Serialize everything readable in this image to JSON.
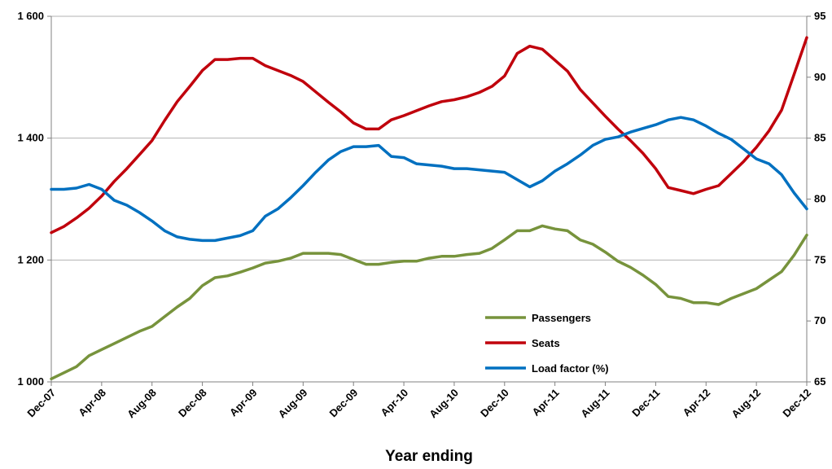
{
  "chart_data": {
    "type": "line",
    "title": "",
    "xlabel": "Year ending",
    "ylabel": "",
    "y2label": "",
    "ylim": [
      1000,
      1600
    ],
    "y2lim": [
      65,
      95
    ],
    "yticks": [
      "1 000",
      "1 200",
      "1 400",
      "1 600"
    ],
    "y2ticks": [
      "65",
      "70",
      "75",
      "80",
      "85",
      "90",
      "95"
    ],
    "x": [
      "Dec-07",
      "Jan-08",
      "Feb-08",
      "Mar-08",
      "Apr-08",
      "May-08",
      "Jun-08",
      "Jul-08",
      "Aug-08",
      "Sep-08",
      "Oct-08",
      "Nov-08",
      "Dec-08",
      "Jan-09",
      "Feb-09",
      "Mar-09",
      "Apr-09",
      "May-09",
      "Jun-09",
      "Jul-09",
      "Aug-09",
      "Sep-09",
      "Oct-09",
      "Nov-09",
      "Dec-09",
      "Jan-10",
      "Feb-10",
      "Mar-10",
      "Apr-10",
      "May-10",
      "Jun-10",
      "Jul-10",
      "Aug-10",
      "Sep-10",
      "Oct-10",
      "Nov-10",
      "Dec-10",
      "Jan-11",
      "Feb-11",
      "Mar-11",
      "Apr-11",
      "May-11",
      "Jun-11",
      "Jul-11",
      "Aug-11",
      "Sep-11",
      "Oct-11",
      "Nov-11",
      "Dec-11",
      "Jan-12",
      "Feb-12",
      "Mar-12",
      "Apr-12",
      "May-12",
      "Jun-12",
      "Jul-12",
      "Aug-12",
      "Sep-12",
      "Oct-12",
      "Nov-12",
      "Dec-12"
    ],
    "xtick_labels": [
      "Dec-07",
      "Apr-08",
      "Aug-08",
      "Dec-08",
      "Apr-09",
      "Aug-09",
      "Dec-09",
      "Apr-10",
      "Aug-10",
      "Dec-10",
      "Apr-11",
      "Aug-11",
      "Dec-11",
      "Apr-12",
      "Aug-12",
      "Dec-12"
    ],
    "legend_position": "bottom-right inside plot",
    "series": [
      {
        "name": "Passengers",
        "axis": "left",
        "color": "#77933c",
        "values": [
          1005,
          1015,
          1025,
          1043,
          1053,
          1063,
          1073,
          1083,
          1091,
          1107,
          1123,
          1137,
          1158,
          1171,
          1174,
          1180,
          1187,
          1195,
          1198,
          1203,
          1211,
          1211,
          1211,
          1209,
          1201,
          1193,
          1193,
          1196,
          1198,
          1198,
          1203,
          1206,
          1206,
          1209,
          1211,
          1219,
          1233,
          1248,
          1248,
          1256,
          1251,
          1248,
          1233,
          1226,
          1213,
          1198,
          1188,
          1175,
          1160,
          1140,
          1137,
          1130,
          1130,
          1127,
          1137,
          1145,
          1153,
          1167,
          1181,
          1208,
          1241
        ]
      },
      {
        "name": "Seats",
        "axis": "left",
        "color": "#c0000c",
        "values": [
          1245,
          1255,
          1269,
          1285,
          1305,
          1329,
          1350,
          1373,
          1396,
          1429,
          1460,
          1485,
          1511,
          1529,
          1529,
          1531,
          1531,
          1519,
          1511,
          1503,
          1493,
          1476,
          1459,
          1443,
          1425,
          1415,
          1415,
          1430,
          1437,
          1445,
          1453,
          1460,
          1463,
          1468,
          1475,
          1485,
          1502,
          1539,
          1551,
          1546,
          1528,
          1510,
          1480,
          1458,
          1436,
          1415,
          1396,
          1375,
          1350,
          1319,
          1314,
          1309,
          1316,
          1322,
          1342,
          1362,
          1385,
          1412,
          1446,
          1505,
          1565
        ]
      },
      {
        "name": "Load factor (%)",
        "axis": "right",
        "color": "#0070c0",
        "values": [
          80.8,
          80.8,
          80.9,
          81.2,
          80.8,
          79.9,
          79.5,
          78.9,
          78.2,
          77.4,
          76.9,
          76.7,
          76.6,
          76.6,
          76.8,
          77.0,
          77.4,
          78.6,
          79.2,
          80.1,
          81.1,
          82.2,
          83.2,
          83.9,
          84.3,
          84.3,
          84.4,
          83.5,
          83.4,
          82.9,
          82.8,
          82.7,
          82.5,
          82.5,
          82.4,
          82.3,
          82.2,
          81.6,
          81.0,
          81.5,
          82.3,
          82.9,
          83.6,
          84.4,
          84.9,
          85.1,
          85.5,
          85.8,
          86.1,
          86.5,
          86.7,
          86.5,
          86.0,
          85.4,
          84.9,
          84.1,
          83.3,
          82.9,
          82.0,
          80.5,
          79.2
        ]
      }
    ]
  }
}
